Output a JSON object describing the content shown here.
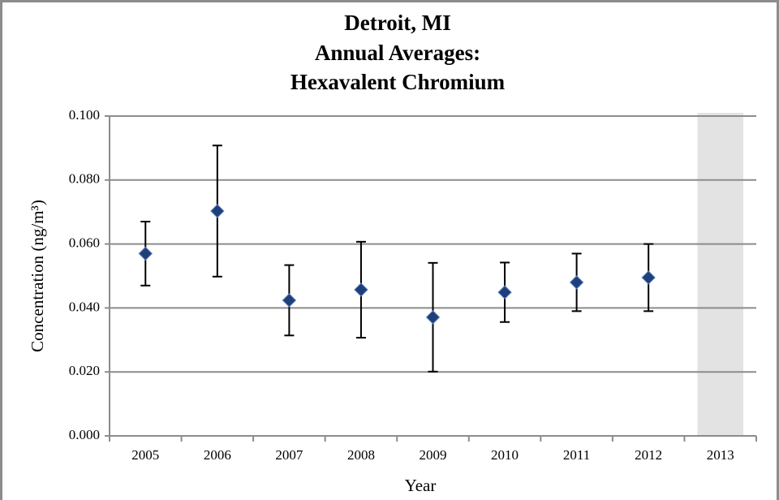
{
  "chart_data": {
    "type": "errorbar",
    "title_lines": [
      "Detroit, MI",
      "Annual Averages:",
      "Hexavalent Chromium"
    ],
    "x_label": "Year",
    "y_label": "Concentration (ng/m³)",
    "categories": [
      "2005",
      "2006",
      "2007",
      "2008",
      "2009",
      "2010",
      "2011",
      "2012",
      "2013"
    ],
    "series": [
      {
        "color": "#1f3f7a",
        "values": [
          0.057,
          0.0703,
          0.0424,
          0.0457,
          0.0371,
          0.0449,
          0.048,
          0.0495,
          null
        ],
        "errors": [
          0.01,
          0.0205,
          0.011,
          0.015,
          0.017,
          0.0093,
          0.009,
          0.0105,
          null
        ]
      }
    ],
    "null_shade_color": "#e3e3e3",
    "ylim": [
      0,
      0.1
    ],
    "yticks": [
      {
        "value": 0,
        "label": "0.000"
      },
      {
        "value": 0.02,
        "label": "0.020"
      },
      {
        "value": 0.04,
        "label": "0.040"
      },
      {
        "value": 0.06,
        "label": "0.060"
      },
      {
        "value": 0.08,
        "label": "0.080"
      },
      {
        "value": 0.1,
        "label": "0.100"
      }
    ],
    "grid": true
  }
}
